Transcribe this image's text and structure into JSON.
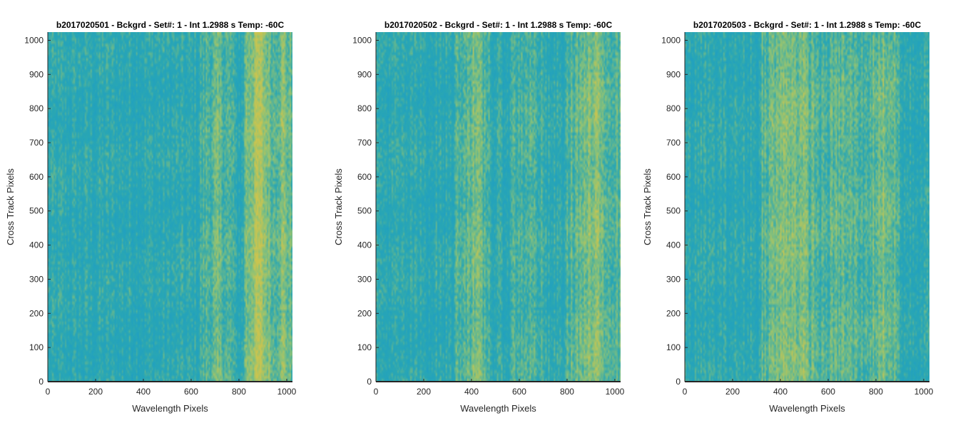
{
  "colors": {
    "base": "#2aa7b3",
    "low": "#1f9fc4",
    "high": "#8cc277",
    "hot": "#c9c450",
    "axis": "#262626"
  },
  "chart_data": [
    {
      "type": "heatmap",
      "title": "b2017020501 - Bckgrd - Set#: 1 - Int 1.2988 s Temp: -60C",
      "xlabel": "Wavelength Pixels",
      "ylabel": "Cross Track Pixels",
      "xlim": [
        0,
        1024
      ],
      "ylim": [
        0,
        1024
      ],
      "xticks": [
        0,
        200,
        400,
        600,
        800,
        1000
      ],
      "yticks": [
        0,
        100,
        200,
        300,
        400,
        500,
        600,
        700,
        800,
        900,
        1000
      ],
      "grid": false,
      "bright_regions": [
        [
          640,
          780,
          0.25
        ],
        [
          820,
          940,
          0.55
        ],
        [
          940,
          1024,
          0.4
        ]
      ]
    },
    {
      "type": "heatmap",
      "title": "b2017020502 - Bckgrd - Set#: 1 - Int 1.2988 s Temp: -60C",
      "xlabel": "Wavelength Pixels",
      "ylabel": "Cross Track Pixels",
      "xlim": [
        0,
        1024
      ],
      "ylim": [
        0,
        1024
      ],
      "xticks": [
        0,
        200,
        400,
        600,
        800,
        1000
      ],
      "yticks": [
        0,
        100,
        200,
        300,
        400,
        500,
        600,
        700,
        800,
        900,
        1000
      ],
      "grid": false,
      "bright_regions": [
        [
          330,
          480,
          0.3
        ],
        [
          560,
          700,
          0.2
        ],
        [
          800,
          1024,
          0.35
        ]
      ]
    },
    {
      "type": "heatmap",
      "title": "b2017020503 - Bckgrd - Set#: 1 - Int 1.2988 s Temp: -60C",
      "xlabel": "Wavelength Pixels",
      "ylabel": "Cross Track Pixels",
      "xlim": [
        0,
        1024
      ],
      "ylim": [
        0,
        1024
      ],
      "xticks": [
        0,
        200,
        400,
        600,
        800,
        1000
      ],
      "yticks": [
        0,
        100,
        200,
        300,
        400,
        500,
        600,
        700,
        800,
        900,
        1000
      ],
      "grid": false,
      "bright_regions": [
        [
          320,
          560,
          0.4
        ],
        [
          560,
          760,
          0.25
        ],
        [
          760,
          900,
          0.35
        ]
      ]
    }
  ]
}
